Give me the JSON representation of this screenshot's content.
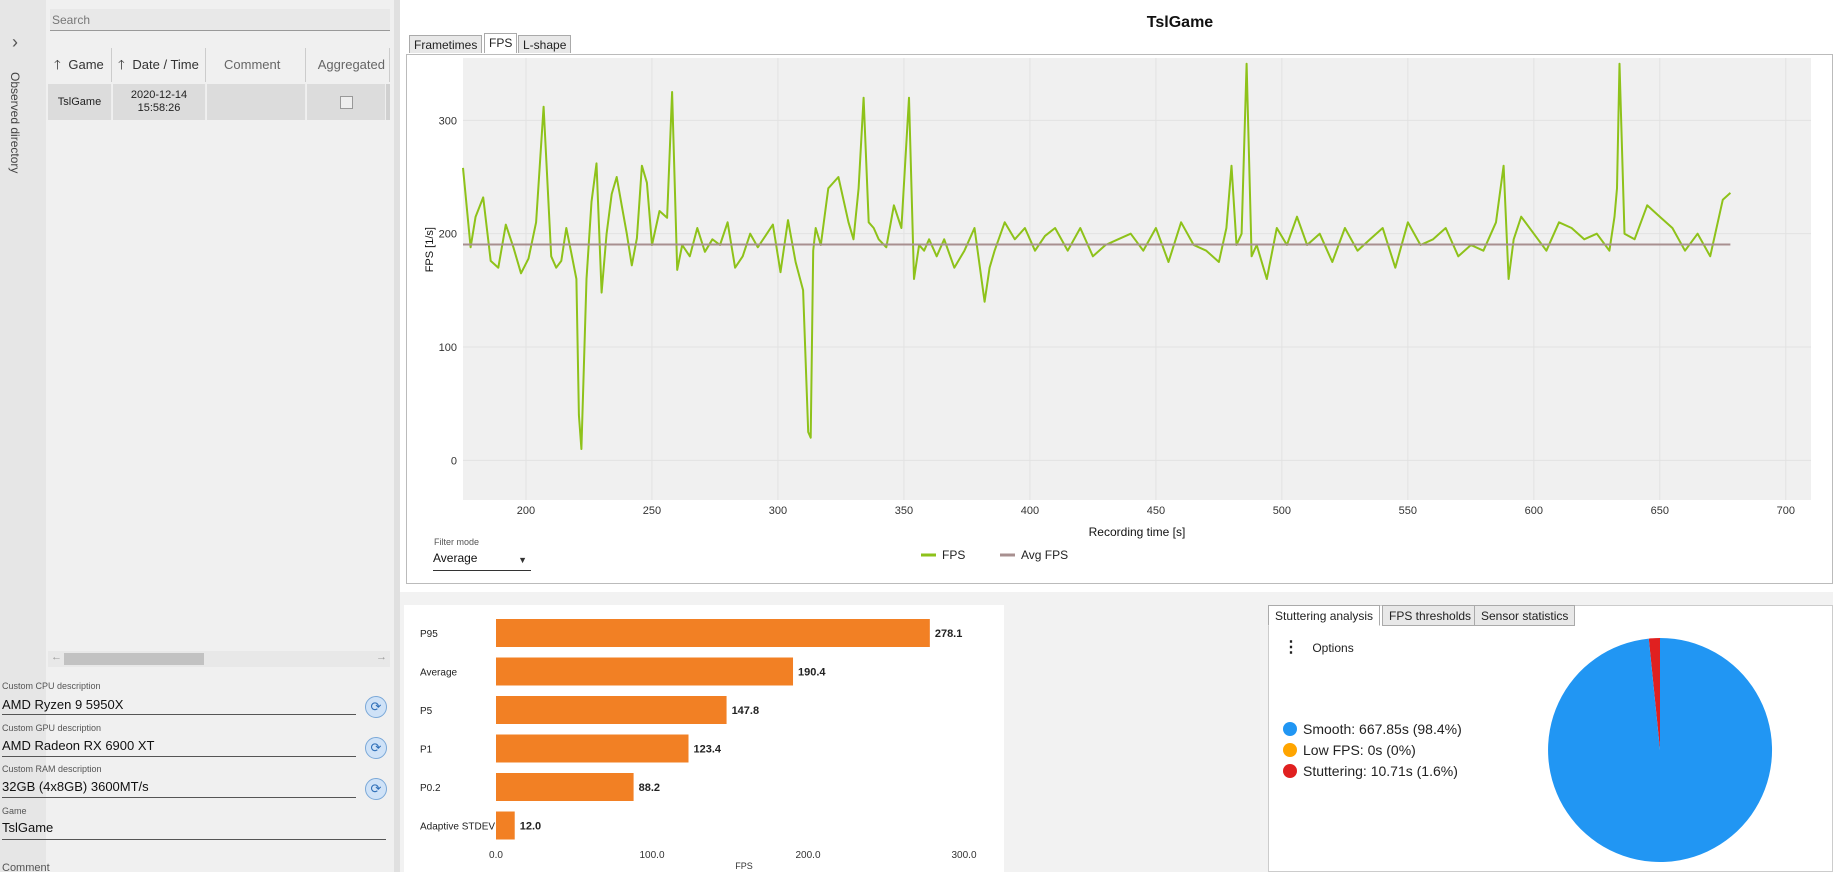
{
  "sidebar": {
    "vertical_label": "Observed directory",
    "chevron_icon": "chevron-right-icon"
  },
  "search": {
    "placeholder": "Search"
  },
  "table": {
    "headers": [
      "Game",
      "Date / Time",
      "Comment",
      "Aggregated"
    ],
    "rows": [
      {
        "game": "TslGame",
        "date": "2020-12-14",
        "time": "15:58:26",
        "comment": "",
        "aggregated": false
      }
    ]
  },
  "descriptions": {
    "cpu": {
      "label": "Custom CPU description",
      "value": "AMD Ryzen 9 5950X"
    },
    "gpu": {
      "label": "Custom GPU description",
      "value": "AMD Radeon RX 6900 XT"
    },
    "ram": {
      "label": "Custom RAM description",
      "value": "32GB (4x8GB) 3600MT/s"
    },
    "game": {
      "label": "Game",
      "value": "TslGame"
    },
    "comment": {
      "label": "Comment"
    }
  },
  "main": {
    "title": "TslGame",
    "tabs": [
      "Frametimes",
      "FPS",
      "L-shape"
    ],
    "active_tab": "FPS",
    "filter_mode": {
      "label": "Filter mode",
      "value": "Average"
    }
  },
  "bottom_tabs": [
    "Stuttering analysis",
    "FPS thresholds",
    "Sensor statistics"
  ],
  "options_label": "Options",
  "stutter_legend": [
    {
      "label": "Smooth:  667.85s (98.4%)",
      "color": "#2196f3"
    },
    {
      "label": "Low FPS:  0s (0%)",
      "color": "#ffa500"
    },
    {
      "label": "Stuttering:  10.71s (1.6%)",
      "color": "#e02020"
    }
  ],
  "colors": {
    "fps_line": "#8ec21a",
    "avg_line": "#a89090",
    "bar": "#f28024"
  },
  "chart_data": [
    {
      "type": "line",
      "title": "TslGame",
      "xlabel": "Recording time [s]",
      "ylabel": "FPS [1/s]",
      "xlim": [
        175,
        710
      ],
      "ylim": [
        -35,
        355
      ],
      "xticks": [
        200,
        250,
        300,
        350,
        400,
        450,
        500,
        550,
        600,
        650,
        700
      ],
      "yticks": [
        0,
        100,
        200,
        300
      ],
      "series": [
        {
          "name": "FPS",
          "x": [
            175,
            178,
            180,
            183,
            186,
            189,
            192,
            195,
            198,
            201,
            204,
            207,
            210,
            212,
            214,
            216,
            218,
            220,
            221,
            222,
            224,
            226,
            228,
            230,
            232,
            234,
            236,
            238,
            240,
            242,
            244,
            246,
            248,
            250,
            253,
            256,
            258,
            260,
            262,
            265,
            268,
            271,
            274,
            277,
            280,
            283,
            286,
            289,
            292,
            295,
            298,
            301,
            304,
            307,
            310,
            312,
            313,
            314,
            315,
            317,
            320,
            324,
            328,
            330,
            332,
            334,
            336,
            338,
            340,
            343,
            346,
            349,
            352,
            354,
            356,
            358,
            360,
            363,
            366,
            370,
            374,
            378,
            382,
            384,
            386,
            390,
            394,
            398,
            402,
            406,
            410,
            415,
            420,
            425,
            430,
            435,
            440,
            445,
            450,
            455,
            460,
            465,
            470,
            475,
            478,
            480,
            482,
            484,
            486,
            488,
            490,
            494,
            498,
            502,
            506,
            510,
            515,
            520,
            525,
            530,
            535,
            540,
            545,
            550,
            555,
            560,
            565,
            570,
            575,
            580,
            585,
            588,
            590,
            592,
            595,
            600,
            605,
            610,
            615,
            620,
            625,
            630,
            632,
            633,
            634,
            636,
            640,
            645,
            650,
            655,
            660,
            665,
            670,
            675,
            678
          ],
          "values": [
            258,
            188,
            215,
            232,
            176,
            170,
            208,
            188,
            165,
            178,
            210,
            312,
            180,
            170,
            176,
            205,
            183,
            160,
            40,
            10,
            160,
            228,
            262,
            148,
            200,
            235,
            250,
            225,
            200,
            172,
            196,
            260,
            245,
            190,
            220,
            214,
            325,
            168,
            190,
            180,
            205,
            184,
            195,
            190,
            210,
            170,
            180,
            200,
            188,
            198,
            208,
            166,
            212,
            175,
            150,
            25,
            20,
            185,
            205,
            190,
            240,
            250,
            210,
            195,
            240,
            320,
            210,
            205,
            195,
            188,
            225,
            205,
            320,
            160,
            190,
            185,
            195,
            180,
            195,
            170,
            185,
            205,
            140,
            170,
            185,
            210,
            195,
            205,
            185,
            198,
            205,
            185,
            205,
            180,
            190,
            195,
            200,
            185,
            205,
            175,
            210,
            190,
            185,
            175,
            205,
            260,
            190,
            200,
            350,
            180,
            190,
            160,
            205,
            190,
            215,
            190,
            200,
            175,
            205,
            185,
            195,
            205,
            170,
            210,
            190,
            195,
            205,
            180,
            190,
            185,
            210,
            260,
            160,
            195,
            215,
            200,
            185,
            210,
            205,
            195,
            200,
            185,
            215,
            240,
            350,
            200,
            195,
            225,
            215,
            205,
            185,
            200,
            180,
            230,
            236
          ]
        },
        {
          "name": "Avg FPS",
          "x": [
            175,
            678
          ],
          "values": [
            190.4,
            190.4
          ]
        }
      ],
      "legend": [
        "FPS",
        "Avg FPS"
      ]
    },
    {
      "type": "bar",
      "orientation": "horizontal",
      "xlabel": "FPS",
      "xlim": [
        0,
        300
      ],
      "xticks": [
        0.0,
        100.0,
        200.0,
        300.0
      ],
      "categories": [
        "P95",
        "Average",
        "P5",
        "P1",
        "P0.2",
        "Adaptive STDEV"
      ],
      "values": [
        278.1,
        190.4,
        147.8,
        123.4,
        88.2,
        12.0
      ]
    },
    {
      "type": "pie",
      "categories": [
        "Smooth",
        "Low FPS",
        "Stuttering"
      ],
      "values": [
        98.4,
        0,
        1.6
      ]
    }
  ]
}
